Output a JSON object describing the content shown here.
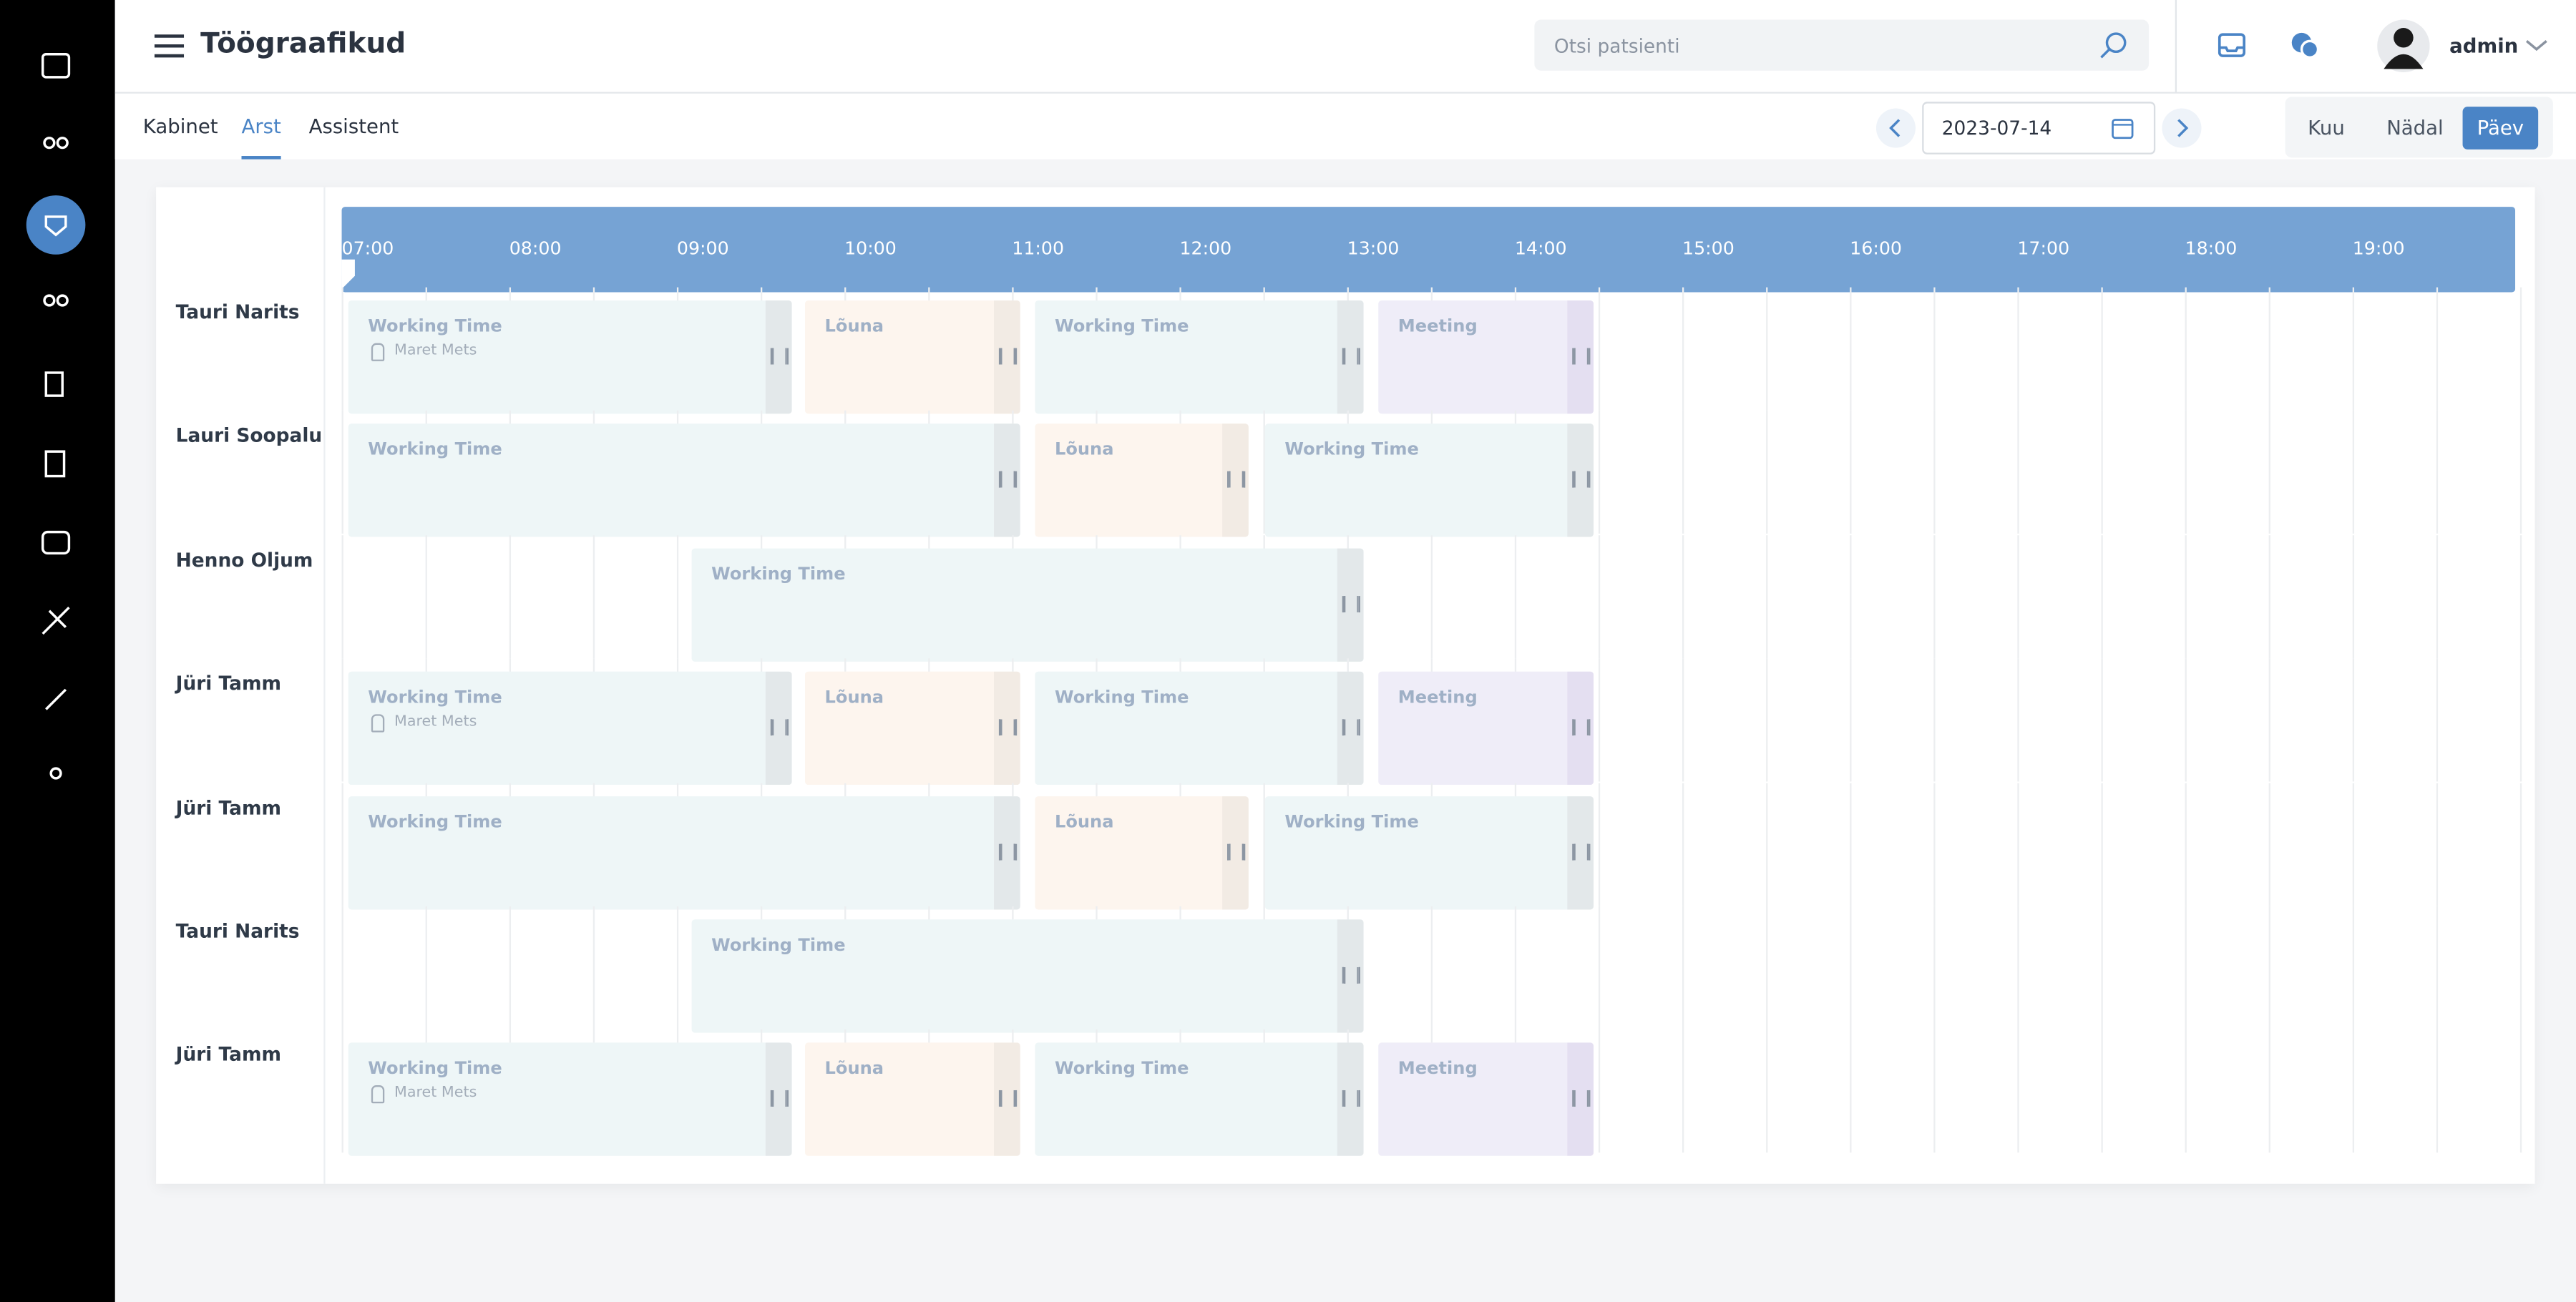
{
  "header": {
    "title": "Töögraafikud",
    "search_placeholder": "Otsi patsienti",
    "user": "admin"
  },
  "tabs": [
    "Kabinet",
    "Arst",
    "Assistent"
  ],
  "date": "2023-07-14",
  "views": [
    "Kuu",
    "Nädal",
    "Päev"
  ],
  "times": [
    "07:00",
    "08:00",
    "09:00",
    "10:00",
    "11:00",
    "12:00",
    "13:00",
    "14:00",
    "15:00",
    "16:00",
    "17:00",
    "18:00",
    "19:00"
  ],
  "rows": [
    {
      "name": "Tauri Narits",
      "blocks": [
        {
          "label": "Working Time",
          "sub": "Maret Mets"
        },
        {
          "label": "Lõuna"
        },
        {
          "label": "Working Time"
        },
        {
          "label": "Meeting"
        }
      ]
    },
    {
      "name": "Lauri Soopalu",
      "blocks": [
        {
          "label": "Working Time"
        },
        {
          "label": "Lõuna"
        },
        {
          "label": "Working Time"
        }
      ]
    },
    {
      "name": "Henno Oljum",
      "blocks": [
        {
          "label": "Working Time"
        }
      ]
    },
    {
      "name": "Jüri Tamm",
      "blocks": [
        {
          "label": "Working Time",
          "sub": "Maret Mets"
        },
        {
          "label": "Lõuna"
        },
        {
          "label": "Working Time"
        },
        {
          "label": "Meeting"
        }
      ]
    },
    {
      "name": "Jüri Tamm",
      "blocks": [
        {
          "label": "Working Time"
        },
        {
          "label": "Lõuna"
        },
        {
          "label": "Working Time"
        }
      ]
    },
    {
      "name": "Tauri Narits",
      "blocks": [
        {
          "label": "Working Time"
        }
      ]
    },
    {
      "name": "Jüri Tamm",
      "blocks": [
        {
          "label": "Working Time",
          "sub": "Maret Mets"
        },
        {
          "label": "Lõuna"
        },
        {
          "label": "Working Time"
        },
        {
          "label": "Meeting"
        }
      ]
    }
  ]
}
